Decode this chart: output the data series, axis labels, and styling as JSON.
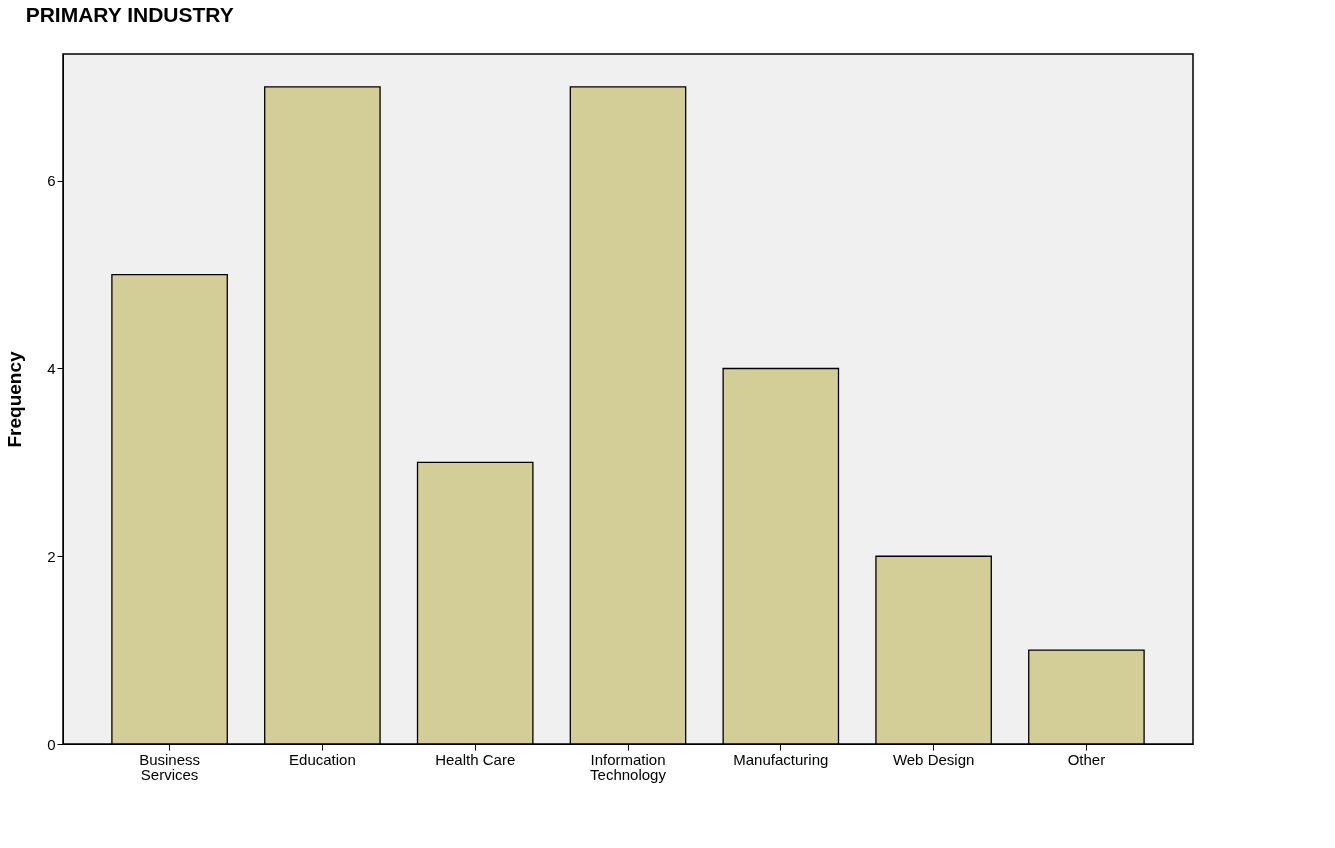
{
  "chart_data": {
    "type": "bar",
    "title": "PRIMARY INDUSTRY",
    "ylabel": "Frequency",
    "categories": [
      "Business Services",
      "Education",
      "Health Care",
      "Information Technology",
      "Manufacturing",
      "Web Design",
      "Other"
    ],
    "values": [
      5,
      7,
      3,
      7,
      4,
      2,
      1
    ],
    "color": "#d3ce97",
    "ylim": [
      0,
      7.35
    ],
    "yticks": [
      0,
      2,
      4,
      6
    ],
    "grid": false
  }
}
